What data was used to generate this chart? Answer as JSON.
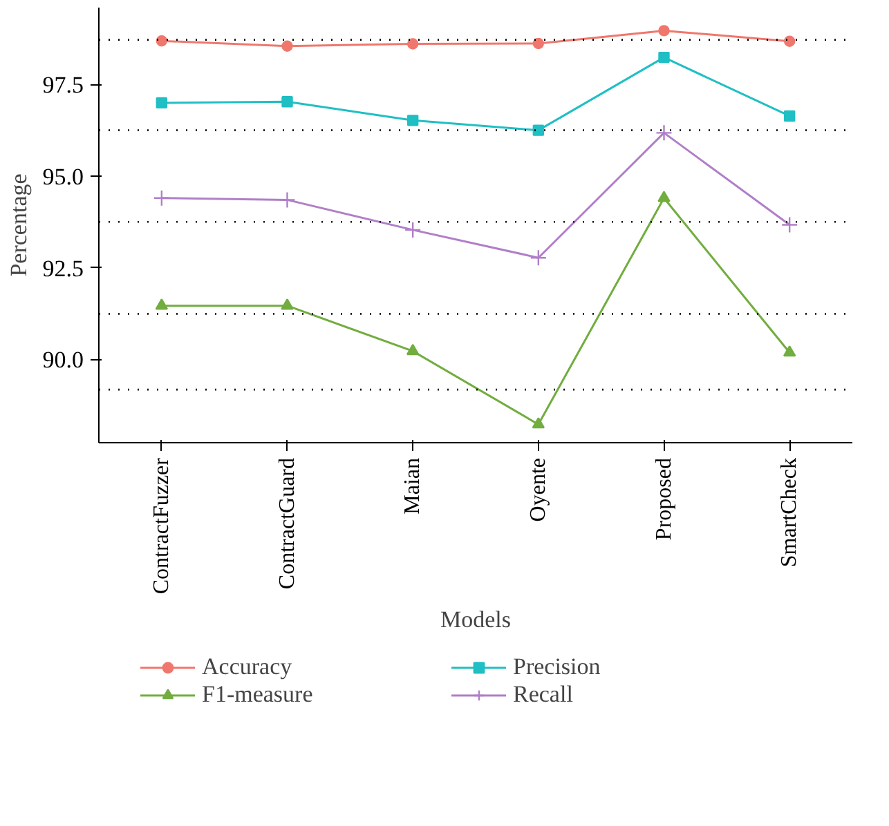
{
  "chart_data": {
    "type": "line",
    "xlabel": "Models",
    "ylabel": "Percentage",
    "categories": [
      "ContractFuzzer",
      "ContractGuard",
      "Maian",
      "Oyente",
      "Proposed",
      "SmartCheck"
    ],
    "series": [
      {
        "name": "Accuracy",
        "color": "#f0776d",
        "marker": "circle",
        "values": [
          98.69,
          98.55,
          98.61,
          98.62,
          98.97,
          98.68
        ]
      },
      {
        "name": "F1-measure",
        "color": "#72ad3f",
        "marker": "triangle",
        "values": [
          91.46,
          91.46,
          90.22,
          88.22,
          94.4,
          90.18
        ]
      },
      {
        "name": "Precision",
        "color": "#1fbfc4",
        "marker": "square",
        "values": [
          97.0,
          97.03,
          96.52,
          96.25,
          98.24,
          96.64
        ]
      },
      {
        "name": "Recall",
        "color": "#b07fc8",
        "marker": "cross",
        "values": [
          94.4,
          94.35,
          93.53,
          92.77,
          96.18,
          93.67
        ]
      }
    ],
    "ylim": [
      87.72,
      99.6
    ],
    "yticks": [
      {
        "value": 90,
        "label": "90.0"
      },
      {
        "value": 92.5,
        "label": "92.5"
      },
      {
        "value": 95,
        "label": "95.0"
      },
      {
        "value": 97.5,
        "label": "97.5"
      }
    ],
    "ref_lines": [
      {
        "axis": "y",
        "value": 98.72,
        "color": "#000000",
        "line_style": "dotted"
      },
      {
        "axis": "y",
        "value": 96.25,
        "color": "#000000",
        "line_style": "dotted"
      },
      {
        "axis": "y",
        "value": 93.75,
        "color": "#000000",
        "line_style": "dotted"
      },
      {
        "axis": "y",
        "value": 91.24,
        "color": "#000000",
        "line_style": "dotted"
      },
      {
        "axis": "y",
        "value": 89.17,
        "color": "#000000",
        "line_style": "dotted"
      }
    ],
    "grid": false,
    "legend": "bottom",
    "line_style": "solid"
  }
}
